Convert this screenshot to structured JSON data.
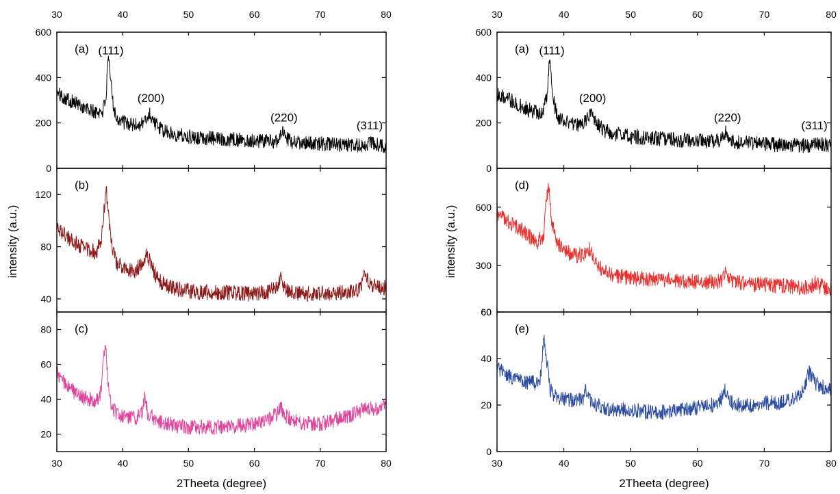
{
  "figure": {
    "left": {
      "xlabel": "2Theeta (degree)",
      "ylabel": "intensity (a.u.)",
      "x_ticks": [
        "30",
        "40",
        "50",
        "60",
        "70",
        "80"
      ],
      "panels": [
        {
          "label": "(a)",
          "y_ticks": [
            "0",
            "200",
            "400",
            "600"
          ],
          "peak_labels": [
            "(111)",
            "(200)",
            "(220)",
            "(311)"
          ]
        },
        {
          "label": "(b)",
          "y_ticks": [
            "40",
            "80",
            "120"
          ],
          "peak_labels": []
        },
        {
          "label": "(c)",
          "y_ticks": [
            "20",
            "40",
            "60",
            "80"
          ],
          "peak_labels": []
        }
      ]
    },
    "right": {
      "xlabel": "2Theeta (degree)",
      "ylabel": "intensity (a.u.)",
      "x_ticks": [
        "30",
        "40",
        "50",
        "60",
        "70",
        "80"
      ],
      "panels": [
        {
          "label": "(a)",
          "y_ticks": [
            "0",
            "200",
            "400",
            "600"
          ],
          "peak_labels": [
            "(111)",
            "(200)",
            "(220)",
            "(311)"
          ]
        },
        {
          "label": "(d)",
          "y_ticks": [
            "60",
            "300",
            "600"
          ],
          "peak_labels": []
        },
        {
          "label": "(e)",
          "y_ticks": [
            "0",
            "20",
            "40",
            "60"
          ],
          "peak_labels": []
        }
      ]
    }
  },
  "chart_data": [
    {
      "type": "line",
      "title": "",
      "xlabel": "2Theeta (degree)",
      "ylabel": "intensity (a.u.)",
      "xlim": [
        30,
        80
      ],
      "panels": [
        {
          "name": "(a)",
          "color": "#000000",
          "ylim": [
            0,
            600
          ],
          "annotations": [
            {
              "text": "(111)",
              "x": 38.0,
              "y": 520
            },
            {
              "text": "(200)",
              "x": 44.3,
              "y": 310
            },
            {
              "text": "(220)",
              "x": 64.5,
              "y": 225
            },
            {
              "text": "(311)",
              "x": 77.5,
              "y": 190
            }
          ],
          "x": [
            30,
            31,
            32,
            33,
            34,
            35,
            36,
            37,
            37.5,
            37.8,
            38.2,
            38.6,
            39,
            40,
            41,
            42,
            43,
            43.7,
            44.1,
            44.6,
            45.3,
            46,
            48,
            50,
            52,
            55,
            58,
            60,
            62,
            63.5,
            64.2,
            64.8,
            66,
            68,
            70,
            72,
            74,
            76,
            77,
            77.6,
            78.2,
            79,
            80
          ],
          "y": [
            330,
            315,
            300,
            285,
            270,
            255,
            245,
            255,
            320,
            485,
            380,
            280,
            225,
            205,
            195,
            190,
            200,
            220,
            240,
            215,
            185,
            165,
            150,
            140,
            135,
            130,
            125,
            122,
            120,
            122,
            160,
            130,
            115,
            110,
            108,
            105,
            103,
            100,
            100,
            120,
            105,
            100,
            98
          ]
        },
        {
          "name": "(b)",
          "color": "#8b1a1a",
          "ylim": [
            30,
            140
          ],
          "x": [
            30,
            31,
            32,
            33,
            34,
            35,
            36,
            36.8,
            37.2,
            37.5,
            37.9,
            38.4,
            39,
            40,
            41,
            42,
            43,
            43.6,
            44.2,
            45,
            46,
            48,
            50,
            52,
            55,
            58,
            60,
            62,
            63.5,
            64,
            64.5,
            66,
            68,
            70,
            72,
            74,
            76,
            76.6,
            77.2,
            78,
            79,
            80
          ],
          "y": [
            95,
            90,
            86,
            82,
            80,
            77,
            76,
            85,
            110,
            125,
            100,
            80,
            68,
            64,
            62,
            62,
            68,
            75,
            68,
            58,
            52,
            48,
            46,
            45,
            45,
            44,
            44,
            45,
            50,
            56,
            48,
            45,
            44,
            44,
            44,
            45,
            47,
            58,
            55,
            50,
            48,
            49
          ]
        },
        {
          "name": "(c)",
          "color": "#e0449a",
          "ylim": [
            10,
            90
          ],
          "x": [
            30,
            31,
            32,
            33,
            34,
            35,
            36,
            36.7,
            37.1,
            37.4,
            37.8,
            38.3,
            39,
            40,
            41,
            42,
            43,
            43.4,
            43.8,
            45,
            46,
            48,
            50,
            52,
            55,
            58,
            60,
            62,
            63.5,
            64,
            64.7,
            66,
            68,
            70,
            72,
            74,
            76,
            77,
            78,
            79,
            80
          ],
          "y": [
            55,
            50,
            46,
            43,
            41,
            40,
            39,
            44,
            62,
            72,
            48,
            36,
            32,
            30,
            30,
            29,
            33,
            43,
            32,
            28,
            27,
            25,
            24,
            24,
            24,
            25,
            26,
            28,
            32,
            35,
            30,
            28,
            26,
            26,
            28,
            30,
            33,
            36,
            34,
            35,
            36
          ]
        }
      ]
    },
    {
      "type": "line",
      "title": "",
      "xlabel": "2Theeta (degree)",
      "ylabel": "intensity (a.u.)",
      "xlim": [
        30,
        80
      ],
      "panels": [
        {
          "name": "(a)",
          "color": "#000000",
          "ylim": [
            0,
            600
          ],
          "annotations": [
            {
              "text": "(111)",
              "x": 38.0,
              "y": 520
            },
            {
              "text": "(200)",
              "x": 44.3,
              "y": 310
            },
            {
              "text": "(220)",
              "x": 64.5,
              "y": 225
            },
            {
              "text": "(311)",
              "x": 77.5,
              "y": 190
            }
          ],
          "x": [
            30,
            31,
            32,
            33,
            34,
            35,
            36,
            37,
            37.5,
            37.8,
            38.2,
            38.6,
            39,
            40,
            41,
            42,
            43,
            43.7,
            44.1,
            44.6,
            45.3,
            46,
            48,
            50,
            52,
            55,
            58,
            60,
            62,
            63.5,
            64.2,
            64.8,
            66,
            68,
            70,
            72,
            74,
            76,
            77,
            77.6,
            78.2,
            79,
            80
          ],
          "y": [
            330,
            315,
            300,
            285,
            270,
            255,
            245,
            255,
            320,
            485,
            380,
            280,
            225,
            205,
            195,
            190,
            200,
            220,
            240,
            215,
            185,
            165,
            150,
            140,
            135,
            130,
            125,
            122,
            120,
            122,
            160,
            130,
            115,
            110,
            108,
            105,
            103,
            100,
            100,
            120,
            105,
            100,
            98
          ]
        },
        {
          "name": "(d)",
          "color": "#e8302e",
          "ylim": [
            60,
            800
          ],
          "x": [
            30,
            31,
            32,
            33,
            34,
            35,
            36,
            37,
            37.3,
            37.7,
            38.2,
            38.8,
            39.5,
            40,
            41,
            42,
            43,
            43.6,
            44.2,
            45,
            46,
            48,
            50,
            52,
            55,
            58,
            60,
            62,
            63.5,
            64.2,
            64.8,
            66,
            68,
            70,
            72,
            74,
            76,
            77,
            77.6,
            78.3,
            79,
            80
          ],
          "y": [
            560,
            540,
            520,
            500,
            470,
            445,
            420,
            450,
            600,
            720,
            520,
            430,
            400,
            380,
            360,
            350,
            360,
            385,
            370,
            310,
            270,
            245,
            235,
            230,
            225,
            220,
            215,
            215,
            220,
            270,
            230,
            210,
            205,
            200,
            195,
            190,
            185,
            190,
            215,
            195,
            185,
            180
          ]
        },
        {
          "name": "(e)",
          "color": "#2b4ba0",
          "ylim": [
            0,
            60
          ],
          "x": [
            30,
            31,
            32,
            33,
            34,
            35,
            36,
            36.6,
            37,
            37.4,
            37.9,
            38.5,
            39.5,
            40,
            41,
            42,
            43,
            43.3,
            43.7,
            45,
            46,
            48,
            50,
            52,
            55,
            58,
            60,
            62,
            63.5,
            64,
            64.8,
            66,
            68,
            70,
            72,
            74,
            75,
            76,
            76.7,
            77.5,
            78.5,
            80
          ],
          "y": [
            36,
            34,
            32,
            31,
            30,
            30,
            29,
            33,
            50,
            40,
            27,
            24,
            23,
            23,
            22,
            22,
            23,
            27,
            22,
            20,
            19,
            18,
            18,
            17,
            17,
            18,
            19,
            20,
            22,
            27,
            22,
            20,
            20,
            21,
            21,
            22,
            24,
            28,
            34,
            30,
            28,
            27
          ]
        }
      ]
    }
  ]
}
